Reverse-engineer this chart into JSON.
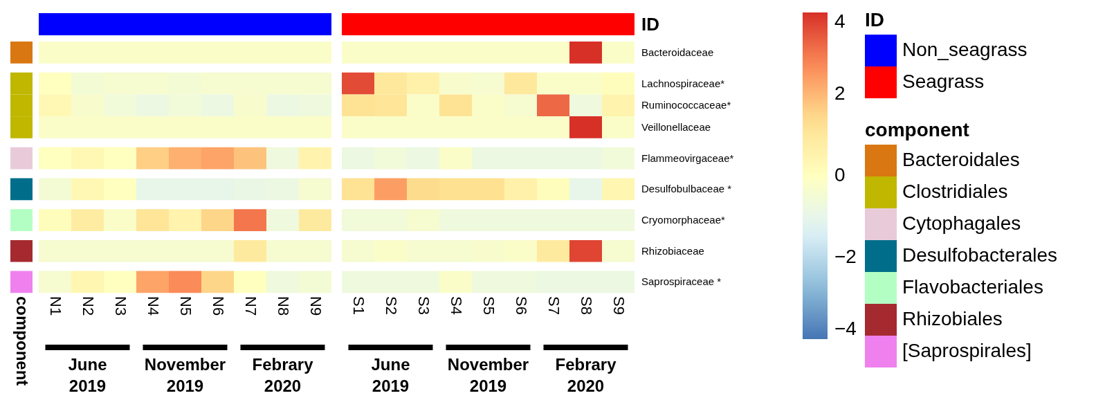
{
  "chart_data": [
    {
      "type": "heatmap",
      "categories": [
        "N1",
        "N2",
        "N3",
        "N4",
        "N5",
        "N6",
        "N7",
        "N8",
        "N9",
        "S1",
        "S2",
        "S3",
        "S4",
        "S5",
        "S6",
        "S7",
        "S8",
        "S9"
      ],
      "y_categories": [
        "Bacteroidaceae",
        "Lachnospiraceae*",
        "Ruminococcaceae*",
        "Veillonellaceae",
        "Flammeovirgaceae*",
        "Desulfobulbaceae *",
        "Cryomorphaceae*",
        "Rhizobiaceae",
        "Saprospiraceae *"
      ],
      "cells": [
        [
          -0.2,
          -0.2,
          -0.2,
          -0.2,
          -0.2,
          -0.2,
          -0.2,
          -0.2,
          -0.2,
          -0.2,
          -0.2,
          -0.2,
          -0.2,
          -0.2,
          -0.2,
          -0.2,
          4.0,
          -0.2
        ],
        [
          0.0,
          -0.5,
          -0.4,
          -0.4,
          -0.5,
          -0.4,
          -0.4,
          -0.4,
          -0.4,
          3.6,
          1.0,
          0.6,
          -0.3,
          -0.4,
          1.0,
          -0.2,
          -0.2,
          0.1
        ],
        [
          0.3,
          -0.3,
          -0.6,
          -0.8,
          -0.6,
          -0.8,
          -0.3,
          -0.8,
          -0.7,
          1.2,
          1.1,
          -0.2,
          1.2,
          -0.2,
          -0.4,
          3.2,
          -0.7,
          0.5
        ],
        [
          -0.2,
          -0.2,
          -0.2,
          -0.2,
          -0.2,
          -0.2,
          -0.2,
          -0.2,
          -0.2,
          -0.2,
          -0.2,
          -0.2,
          -0.2,
          -0.2,
          -0.2,
          -0.2,
          4.0,
          -0.2
        ],
        [
          0.0,
          0.3,
          0.0,
          1.6,
          2.1,
          2.3,
          1.8,
          -0.7,
          0.5,
          -0.8,
          -0.6,
          -0.8,
          -0.2,
          -0.8,
          -0.8,
          -0.8,
          -0.8,
          -0.6
        ],
        [
          -0.5,
          0.3,
          0.0,
          -1.0,
          -1.0,
          -1.0,
          -0.9,
          -0.8,
          -0.4,
          1.2,
          2.4,
          1.4,
          1.3,
          1.3,
          0.6,
          0.1,
          -1.0,
          0.4
        ],
        [
          0.1,
          0.8,
          -0.2,
          1.1,
          0.5,
          1.5,
          3.0,
          -0.7,
          0.9,
          -0.6,
          -0.6,
          -0.4,
          -0.7,
          -0.7,
          -0.7,
          -0.7,
          -0.7,
          -0.7
        ],
        [
          -0.4,
          -0.4,
          -0.4,
          -0.4,
          -0.4,
          -0.4,
          0.9,
          -0.4,
          -0.4,
          -0.4,
          -0.2,
          -0.4,
          -0.4,
          -0.3,
          -0.2,
          0.9,
          3.7,
          -0.4
        ],
        [
          -0.4,
          0.4,
          0.0,
          2.3,
          2.7,
          1.5,
          0.0,
          -0.7,
          -0.5,
          -0.7,
          -0.7,
          -0.7,
          -0.2,
          -0.7,
          -0.7,
          -0.8,
          -0.8,
          -0.8
        ]
      ],
      "clim": [
        -4,
        4
      ],
      "cticks": [
        -4,
        -2,
        0,
        2,
        4
      ],
      "colors": [
        "#4575b4",
        "#91bfdb",
        "#e0f3f8",
        "#ffffbf",
        "#fee090",
        "#fc8d59",
        "#d73027"
      ],
      "annotations": [
        "June 2019",
        "November 2019",
        "Febrary 2020",
        "June 2019",
        "November 2019",
        "Febrary 2020"
      ]
    },
    {
      "type": "other",
      "legend_title": "ID",
      "series": [
        {
          "name": "Non_seagrass",
          "color": "#0000ff"
        },
        {
          "name": "Seagrass",
          "color": "#ff0000"
        }
      ],
      "colors": [
        "#0000ff",
        "#0000ff",
        "#0000ff",
        "#0000ff",
        "#0000ff",
        "#0000ff",
        "#0000ff",
        "#0000ff",
        "#0000ff",
        "#ff0000",
        "#ff0000",
        "#ff0000",
        "#ff0000",
        "#ff0000",
        "#ff0000",
        "#ff0000",
        "#ff0000",
        "#ff0000"
      ]
    },
    {
      "type": "other",
      "legend_title": "component",
      "ylabel": "component",
      "series": [
        {
          "name": "Bacteroidales",
          "color": "#d97712"
        },
        {
          "name": "Clostridiales",
          "color": "#c0b700"
        },
        {
          "name": "Cytophagales",
          "color": "#e8cbd9"
        },
        {
          "name": "Desulfobacterales",
          "color": "#006e8a"
        },
        {
          "name": "Flavobacteriales",
          "color": "#b3ffc3"
        },
        {
          "name": "Rhizobiales",
          "color": "#a52a2f"
        },
        {
          "name": "[Saprospirales]",
          "color": "#ef81ee"
        }
      ],
      "colors": [
        "#d97712",
        "#c0b700",
        "#c0b700",
        "#c0b700",
        "#e8cbd9",
        "#006e8a",
        "#b3ffc3",
        "#a52a2f",
        "#ef81ee"
      ]
    }
  ]
}
